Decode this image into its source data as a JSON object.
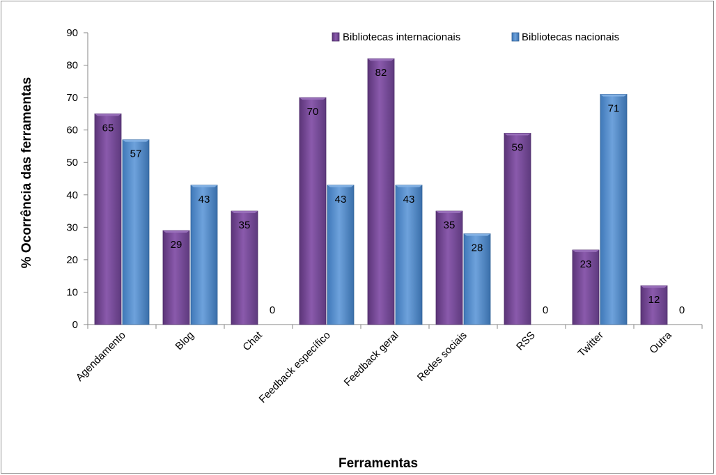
{
  "chart_data": {
    "type": "bar",
    "title": "",
    "xlabel": "Ferramentas",
    "ylabel": "% Ocorrência das ferramentas",
    "ylim": [
      0,
      90
    ],
    "yticks": [
      0,
      10,
      20,
      30,
      40,
      50,
      60,
      70,
      80,
      90
    ],
    "categories": [
      "Agendamento",
      "Blog",
      "Chat",
      "Feedback  específico",
      "Feedback geral",
      "Redes sociais",
      "RSS",
      "Twitter",
      "Outra"
    ],
    "series": [
      {
        "name": "Bibliotecas internacionais",
        "values": [
          65,
          29,
          35,
          70,
          82,
          35,
          59,
          23,
          12
        ]
      },
      {
        "name": "Bibliotecas nacionais",
        "values": [
          57,
          43,
          0,
          43,
          43,
          28,
          0,
          71,
          0
        ]
      }
    ],
    "legend_position": "top-right",
    "grid": false,
    "colors": {
      "series": [
        "#7a4a9c",
        "#4a86c8"
      ],
      "axis": "#868686"
    }
  }
}
